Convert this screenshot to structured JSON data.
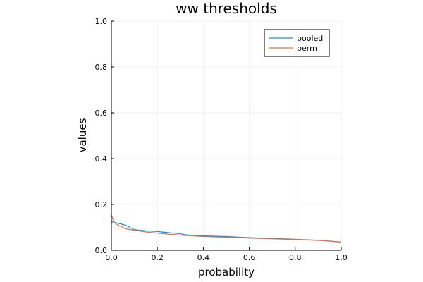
{
  "chart_data": {
    "type": "line",
    "title": "ww thresholds",
    "xlabel": "probability",
    "ylabel": "values",
    "xlim": [
      0.0,
      1.0
    ],
    "ylim": [
      0.0,
      1.0
    ],
    "xticks": [
      "0.0",
      "0.2",
      "0.4",
      "0.6",
      "0.8",
      "1.0"
    ],
    "yticks": [
      "0.0",
      "0.2",
      "0.4",
      "0.6",
      "0.8",
      "1.0"
    ],
    "grid": true,
    "legend": "top-right",
    "series": [
      {
        "name": "pooled",
        "color": "#009af9",
        "x": [
          0.0,
          0.01,
          0.02,
          0.04,
          0.06,
          0.08,
          0.1,
          0.15,
          0.2,
          0.25,
          0.3,
          0.32,
          0.35,
          0.4,
          0.5,
          0.6,
          0.7,
          0.8,
          0.9,
          0.95,
          1.0
        ],
        "y": [
          0.125,
          0.122,
          0.12,
          0.115,
          0.11,
          0.1,
          0.09,
          0.085,
          0.082,
          0.077,
          0.072,
          0.068,
          0.065,
          0.063,
          0.06,
          0.055,
          0.052,
          0.048,
          0.044,
          0.04,
          0.036
        ]
      },
      {
        "name": "perm",
        "color": "#e26f46",
        "x": [
          0.0,
          0.005,
          0.01,
          0.02,
          0.04,
          0.06,
          0.08,
          0.1,
          0.15,
          0.2,
          0.25,
          0.3,
          0.35,
          0.4,
          0.5,
          0.6,
          0.7,
          0.8,
          0.9,
          0.95,
          1.0
        ],
        "y": [
          0.155,
          0.14,
          0.125,
          0.115,
          0.105,
          0.095,
          0.09,
          0.088,
          0.08,
          0.075,
          0.07,
          0.066,
          0.063,
          0.06,
          0.057,
          0.053,
          0.05,
          0.047,
          0.043,
          0.04,
          0.035
        ]
      }
    ]
  }
}
